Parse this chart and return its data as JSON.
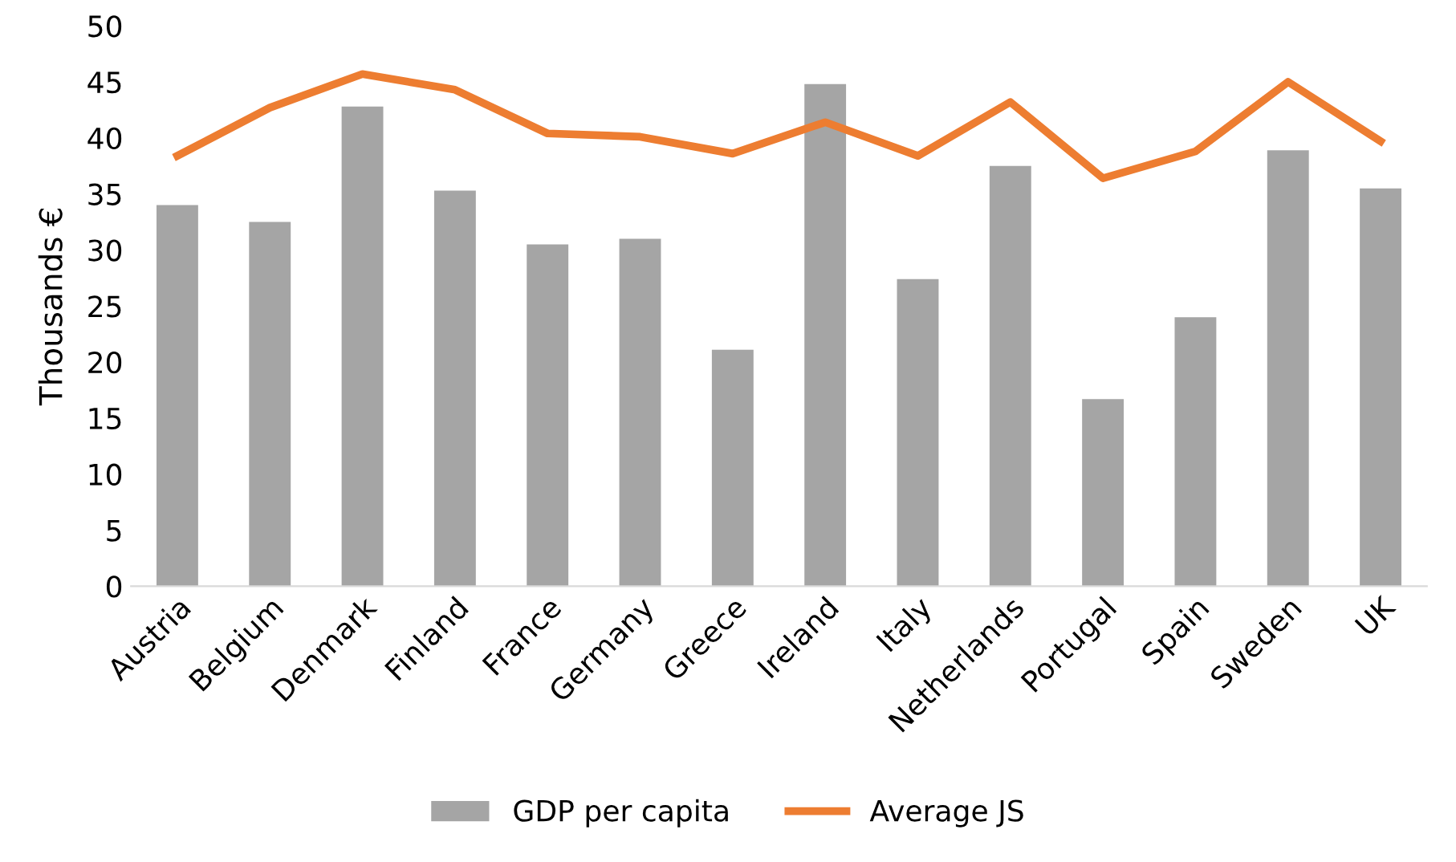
{
  "chart_data": {
    "type": "bar",
    "ylabel": "Thousands €",
    "categories": [
      "Austria",
      "Belgium",
      "Denmark",
      "Finland",
      "France",
      "Germany",
      "Greece",
      "Ireland",
      "Italy",
      "Netherlands",
      "Portugal",
      "Spain",
      "Sweden",
      "UK"
    ],
    "series": [
      {
        "name": "GDP per capita",
        "color": "#a5a5a5",
        "values": [
          34.0,
          32.5,
          42.8,
          35.3,
          30.5,
          31.0,
          21.1,
          44.8,
          27.4,
          37.5,
          16.7,
          24.0,
          38.9,
          35.5
        ]
      },
      {
        "name": "Average JS",
        "type": "line",
        "color": "#ed7d31",
        "values": [
          38.4,
          42.7,
          45.7,
          44.3,
          40.4,
          40.1,
          38.6,
          41.4,
          38.4,
          43.2,
          36.4,
          38.8,
          45.0,
          39.7
        ]
      }
    ],
    "ylim": [
      0,
      50
    ],
    "yticks": [
      0,
      5,
      10,
      15,
      20,
      25,
      30,
      35,
      40,
      45,
      50
    ],
    "grid": false,
    "legend": "bottom"
  }
}
